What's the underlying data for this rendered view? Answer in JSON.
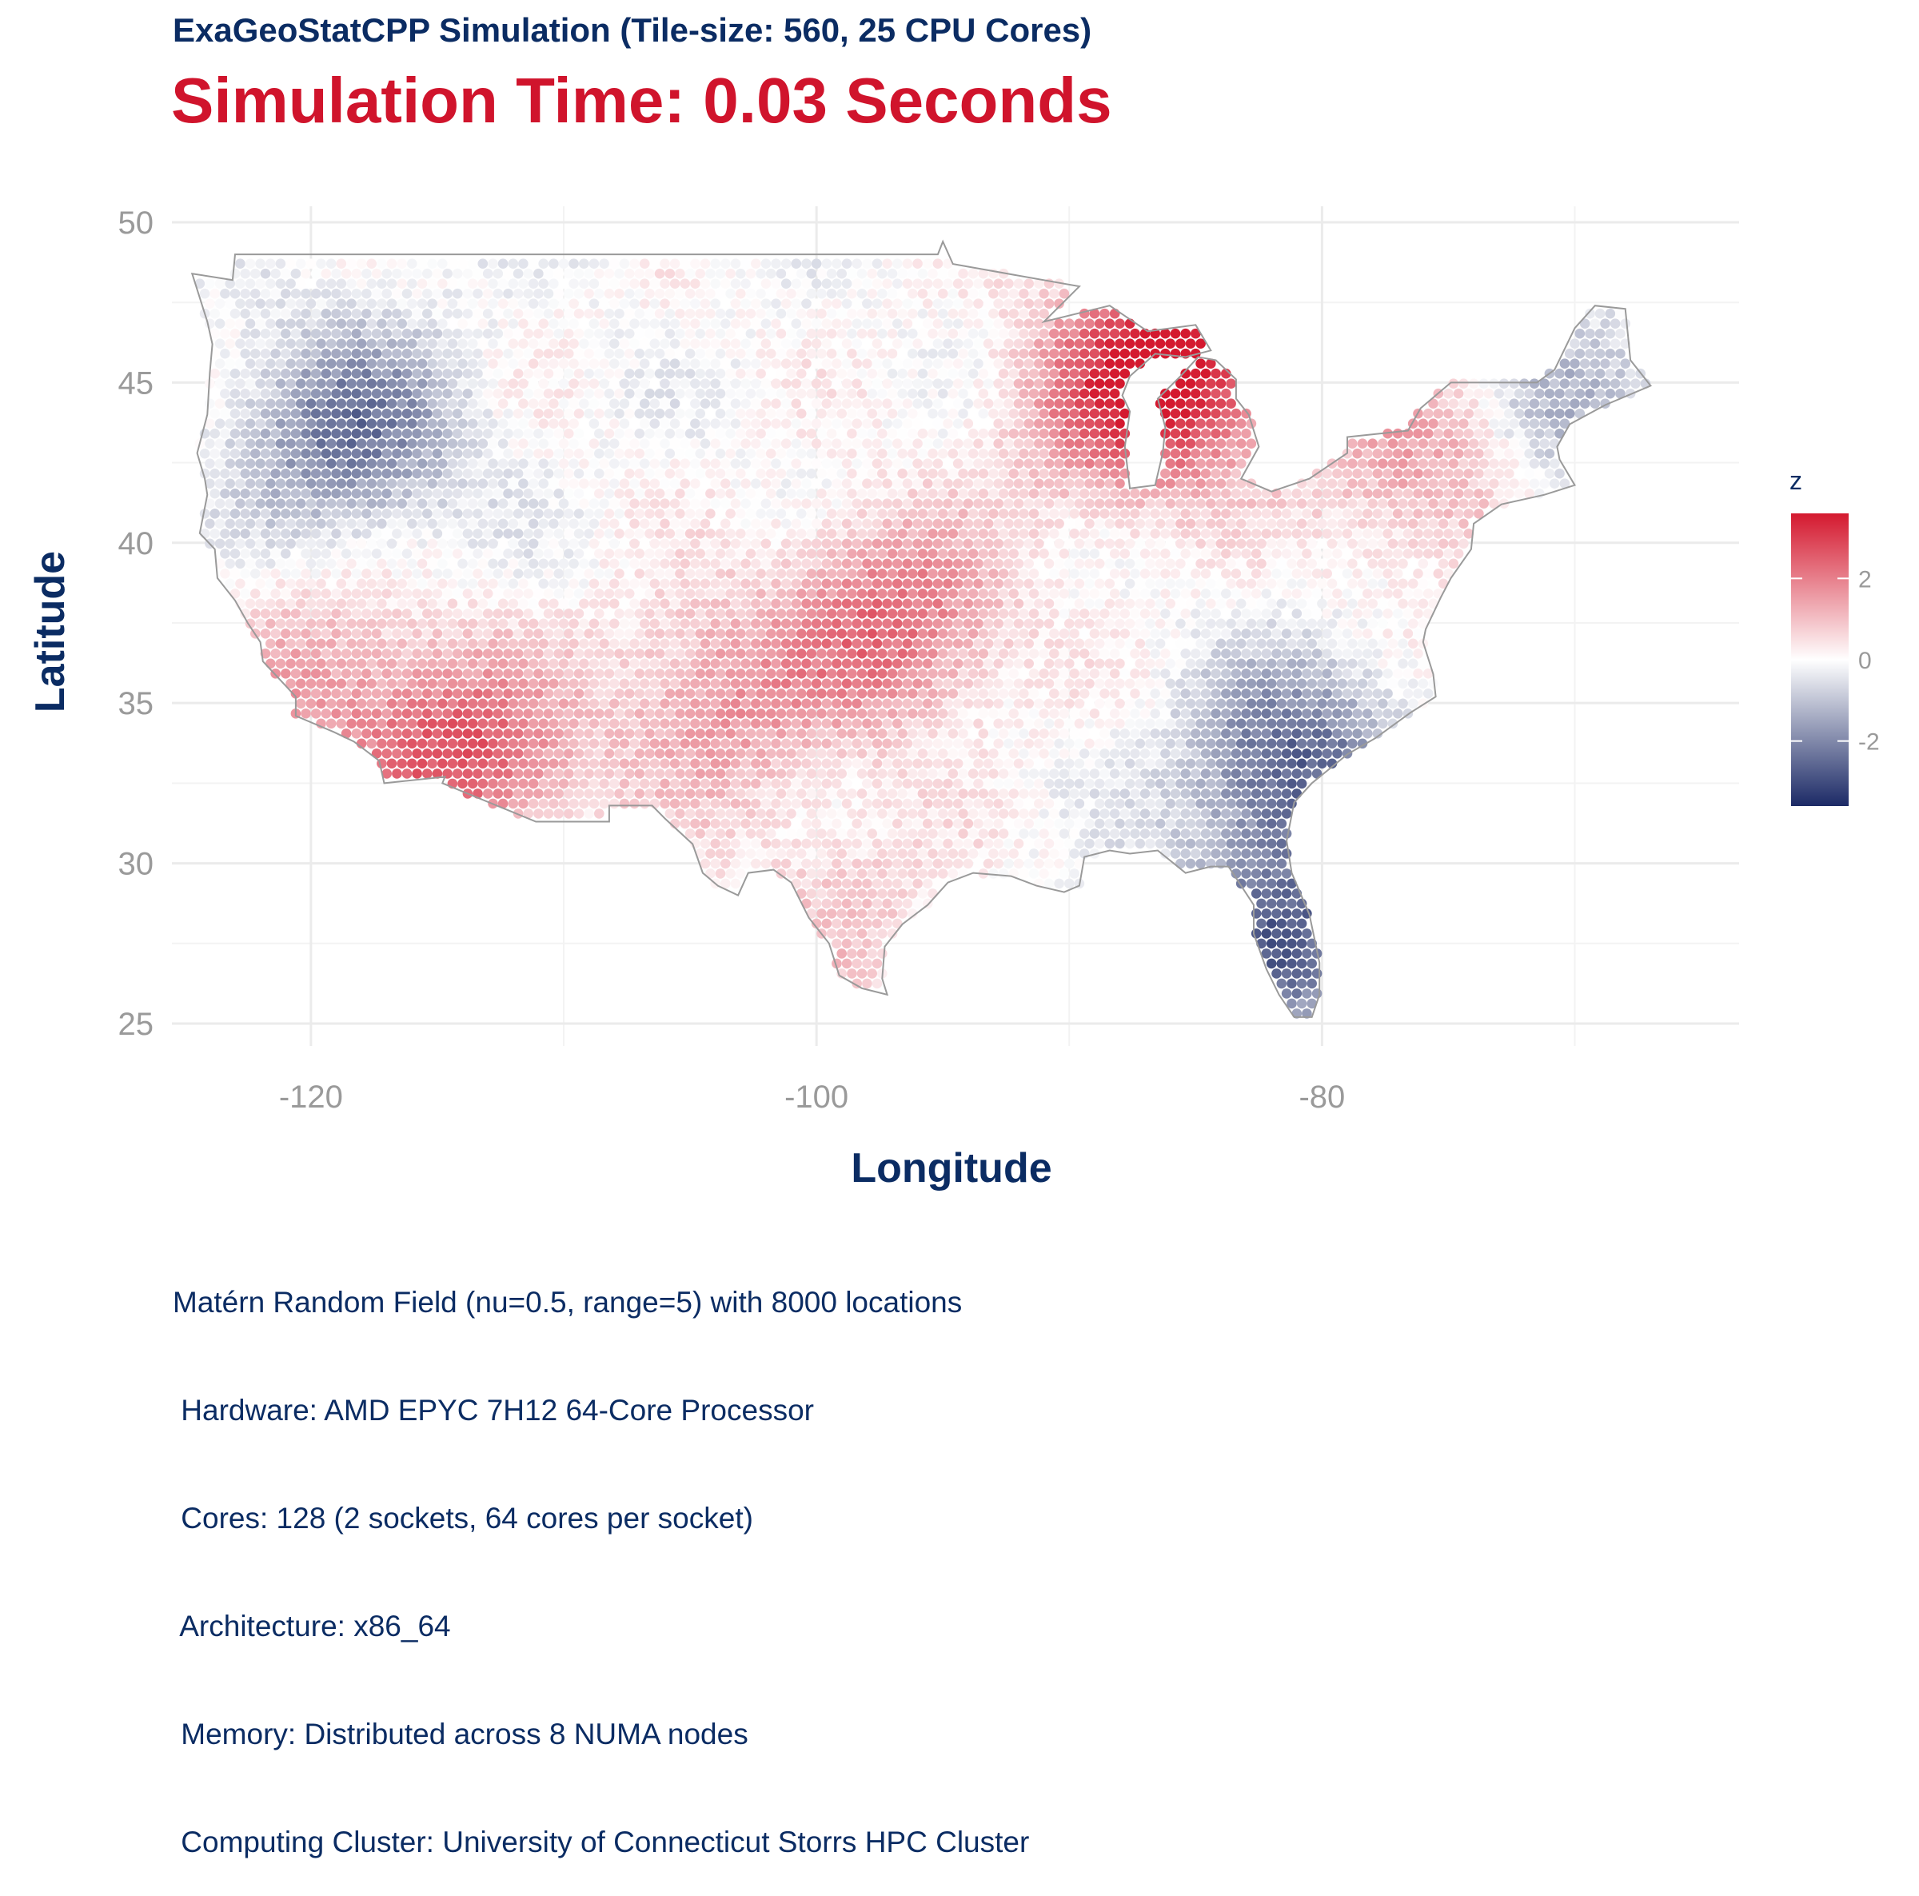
{
  "header": {
    "subtitle": "ExaGeoStatCPP Simulation (Tile-size: 560, 25 CPU Cores)",
    "title": "Simulation Time: 0.03 Seconds"
  },
  "caption": {
    "lines": [
      "Matérn Random Field (nu=0.5, range=5) with 8000 locations",
      " Hardware: AMD EPYC 7H12 64-Core Processor",
      " Cores: 128 (2 sockets, 64 cores per socket)",
      " Architecture: x86_64",
      " Memory: Distributed across 8 NUMA nodes",
      " Computing Cluster: University of Connecticut Storrs HPC Cluster"
    ]
  },
  "chart_data": {
    "type": "scatter",
    "title": "",
    "xlabel": "Longitude",
    "ylabel": "Latitude",
    "xlim": [
      -125.5,
      -63.5
    ],
    "ylim": [
      24.3,
      50.5
    ],
    "x_ticks": [
      -120,
      -100,
      -80
    ],
    "x_tick_labels": [
      "-120",
      "-100",
      "-80"
    ],
    "y_ticks": [
      25,
      30,
      35,
      40,
      45,
      50
    ],
    "y_tick_labels": [
      "25",
      "30",
      "35",
      "40",
      "45",
      "50"
    ],
    "grid": true,
    "legend": {
      "title": "z",
      "position": "right",
      "breaks": [
        2,
        0,
        -2
      ],
      "break_labels": [
        "2",
        "0",
        "-2"
      ],
      "range": [
        -3.6,
        3.6
      ],
      "colors": {
        "low": "#1c2a66",
        "mid": "#ffffff",
        "high": "#d4192f"
      }
    },
    "n_locations": 8000,
    "field_regions": [
      {
        "name": "northwest",
        "center": [
          -118.5,
          43.5
        ],
        "z": -2.3
      },
      {
        "name": "southeast",
        "center": [
          -81,
          33
        ],
        "z": -2.6
      },
      {
        "name": "florida",
        "center": [
          -81.5,
          27.5
        ],
        "z": -2.5
      },
      {
        "name": "southern-arizona",
        "center": [
          -114,
          33.3
        ],
        "z": 2.6
      },
      {
        "name": "kansas-oklahoma",
        "center": [
          -97,
          37.5
        ],
        "z": 2.3
      },
      {
        "name": "upper-michigan",
        "center": [
          -85.5,
          46
        ],
        "z": 3.2
      },
      {
        "name": "california-coast",
        "center": [
          -120,
          35.5
        ],
        "z": 1.3
      },
      {
        "name": "new-mexico-texas",
        "center": [
          -104,
          35
        ],
        "z": 1.6
      },
      {
        "name": "great-lakes",
        "center": [
          -88,
          44
        ],
        "z": 1.8
      },
      {
        "name": "new-york",
        "center": [
          -76,
          42.5
        ],
        "z": 1.5
      },
      {
        "name": "gulf-texas",
        "center": [
          -99,
          28.5
        ],
        "z": 0.8
      },
      {
        "name": "new-england",
        "center": [
          -70,
          44
        ],
        "z": -1.2
      }
    ],
    "colors": {
      "axis_text": "#9a9a9a",
      "axis_title": "#0b2c63",
      "grid": "#ebebeb",
      "border": "#9a9a9a"
    }
  }
}
